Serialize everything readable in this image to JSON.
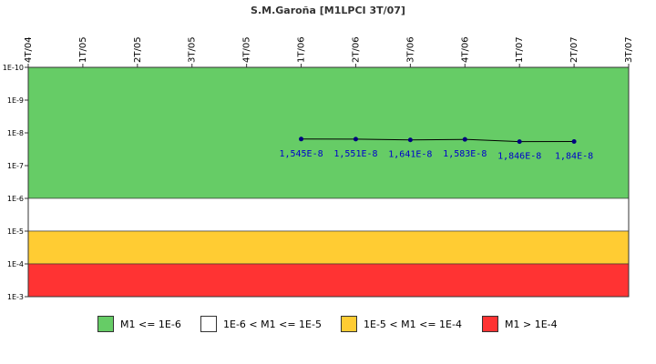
{
  "chart_data": {
    "type": "line",
    "title": "S.M.Garoña [M1LPCI 3T/07]",
    "y_scale": "log",
    "y_direction": "inverted",
    "ylim": [
      1e-10,
      0.001
    ],
    "ytick_labels": [
      "1E-10",
      "1E-9",
      "1E-8",
      "1E-7",
      "1E-6",
      "1E-5",
      "1E-4",
      "1E-3"
    ],
    "xtick_labels": [
      "4T/04",
      "1T/05",
      "2T/05",
      "3T/05",
      "4T/05",
      "1T/06",
      "2T/06",
      "3T/06",
      "4T/06",
      "1T/07",
      "2T/07",
      "3T/07"
    ],
    "series": [
      {
        "x": [
          "1T/06",
          "2T/06",
          "3T/06",
          "4T/06",
          "1T/07",
          "2T/07"
        ],
        "values": [
          1.545e-08,
          1.551e-08,
          1.641e-08,
          1.583e-08,
          1.846e-08,
          1.84e-08
        ],
        "labels": [
          "1,545E-8",
          "1,551E-8",
          "1,641E-8",
          "1,583E-8",
          "1,846E-8",
          "1,84E-8"
        ],
        "line_color": "#000000",
        "marker_color": "#000080"
      }
    ],
    "bands": [
      {
        "from": 1e-10,
        "to": 1e-06,
        "color": "#66cc66"
      },
      {
        "from": 1e-06,
        "to": 1e-05,
        "color": "#ffffff"
      },
      {
        "from": 1e-05,
        "to": 0.0001,
        "color": "#ffcc33"
      },
      {
        "from": 0.0001,
        "to": 0.001,
        "color": "#ff3333"
      }
    ],
    "legend": [
      {
        "label": "M1 <= 1E-6",
        "color": "#66cc66"
      },
      {
        "label": "1E-6 < M1 <= 1E-5",
        "color": "#ffffff"
      },
      {
        "label": "1E-5 < M1 <= 1E-4",
        "color": "#ffcc33"
      },
      {
        "label": "M1 > 1E-4",
        "color": "#ff3333"
      }
    ],
    "legend_position": "bottom",
    "grid": false
  }
}
